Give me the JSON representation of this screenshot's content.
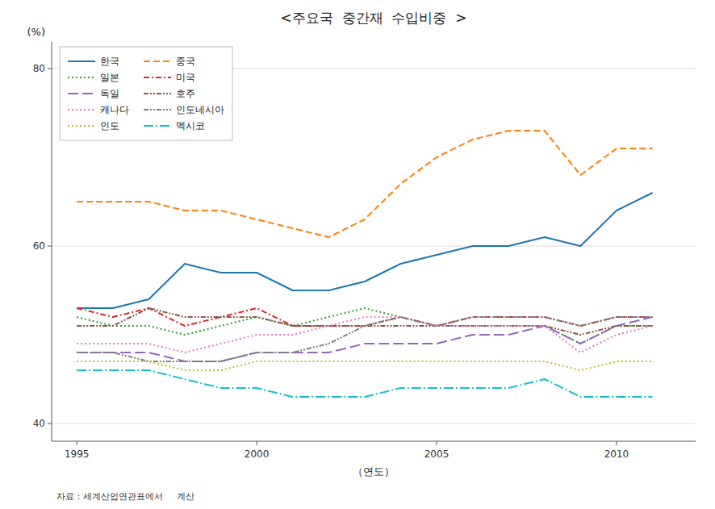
{
  "chart_data": {
    "type": "line",
    "title": "<주요국  중간재  수입비중  >",
    "x_label": "（연도）",
    "y_label": "(%)",
    "annotations": [
      "자료：세계산업연관표에서     계산"
    ],
    "x": [
      1995,
      1996,
      1997,
      1998,
      1999,
      2000,
      2001,
      2002,
      2003,
      2004,
      2005,
      2006,
      2007,
      2008,
      2009,
      2010,
      2011
    ],
    "xlim": [
      1994.3,
      2012.2
    ],
    "xticks": [
      1995,
      2000,
      2005,
      2010
    ],
    "ylim": [
      38,
      83
    ],
    "yticks": [
      40,
      60,
      80
    ],
    "grid": true,
    "legend": "upper left",
    "series": [
      {
        "name": "한국",
        "line_style": "solid",
        "values": [
          53,
          53,
          54,
          58,
          57,
          57,
          55,
          55,
          56,
          58,
          59,
          60,
          60,
          61,
          60,
          64,
          66
        ]
      },
      {
        "name": "중국",
        "line_style": "dashed",
        "values": [
          65,
          65,
          65,
          64,
          64,
          63,
          62,
          61,
          63,
          67,
          70,
          72,
          73,
          73,
          68,
          71,
          71
        ]
      },
      {
        "name": "일본",
        "line_style": "dotted",
        "values": [
          52,
          51,
          51,
          50,
          51,
          52,
          51,
          52,
          53,
          52,
          51,
          51,
          51,
          51,
          49,
          51,
          51
        ]
      },
      {
        "name": "미국",
        "line_style": "dashdot",
        "values": [
          53,
          52,
          53,
          51,
          52,
          53,
          51,
          51,
          51,
          52,
          51,
          52,
          52,
          52,
          51,
          52,
          52
        ]
      },
      {
        "name": "독일",
        "line_style": "longdash",
        "values": [
          48,
          48,
          48,
          47,
          47,
          48,
          48,
          48,
          49,
          49,
          49,
          50,
          50,
          51,
          49,
          51,
          52
        ]
      },
      {
        "name": "호주",
        "line_style": "dashdotdot",
        "values": [
          51,
          51,
          53,
          52,
          52,
          52,
          51,
          51,
          51,
          51,
          51,
          51,
          51,
          51,
          50,
          51,
          51
        ]
      },
      {
        "name": "캐나다",
        "line_style": "dotted",
        "values": [
          49,
          49,
          49,
          48,
          49,
          50,
          50,
          51,
          52,
          52,
          51,
          51,
          51,
          51,
          48,
          50,
          51
        ]
      },
      {
        "name": "인도네시아",
        "line_style": "dashdotdot",
        "values": [
          48,
          48,
          47,
          47,
          47,
          48,
          48,
          49,
          51,
          52,
          51,
          52,
          52,
          52,
          51,
          52,
          52
        ]
      },
      {
        "name": "인도",
        "line_style": "dotted",
        "values": [
          47,
          47,
          47,
          46,
          46,
          47,
          47,
          47,
          47,
          47,
          47,
          47,
          47,
          47,
          46,
          47,
          47
        ]
      },
      {
        "name": "멕시코",
        "line_style": "longdashdot",
        "values": [
          46,
          46,
          46,
          45,
          44,
          44,
          43,
          43,
          43,
          44,
          44,
          44,
          44,
          45,
          43,
          43,
          43
        ]
      }
    ]
  }
}
